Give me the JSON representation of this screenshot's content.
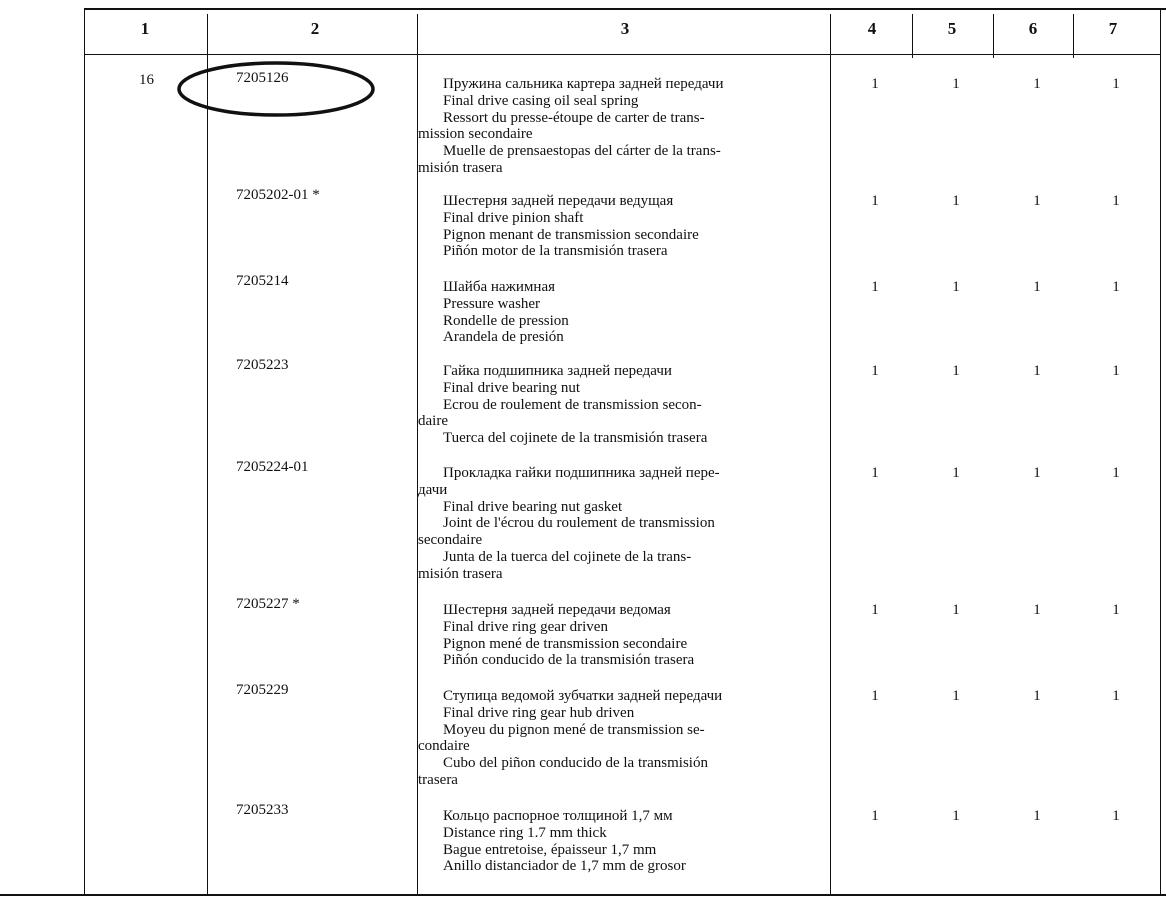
{
  "header": [
    "1",
    "2",
    "3",
    "4",
    "5",
    "6",
    "7"
  ],
  "rows": [
    {
      "col1": "16",
      "part": "7205126",
      "desc": [
        [
          "Пружина сальника картера задней передачи"
        ],
        [
          "Final drive casing oil seal spring"
        ],
        [
          "Ressort du presse-étoupe de carter de trans-",
          "mission secondaire"
        ],
        [
          "Muelle de prensaestopas del cárter de la trans-",
          "misión trasera"
        ]
      ],
      "qty": [
        "1",
        "1",
        "1",
        "1"
      ]
    },
    {
      "part": "7205202-01 *",
      "desc": [
        [
          "Шестерня задней передачи ведущая"
        ],
        [
          "Final drive pinion shaft"
        ],
        [
          "Pignon menant de transmission secondaire"
        ],
        [
          "Piñón motor de la transmisión trasera"
        ]
      ],
      "qty": [
        "1",
        "1",
        "1",
        "1"
      ]
    },
    {
      "part": "7205214",
      "desc": [
        [
          "Шайба нажимная"
        ],
        [
          "Pressure washer"
        ],
        [
          "Rondelle de pression"
        ],
        [
          "Arandela de presión"
        ]
      ],
      "qty": [
        "1",
        "1",
        "1",
        "1"
      ]
    },
    {
      "part": "7205223",
      "desc": [
        [
          "Гайка подшипника задней передачи"
        ],
        [
          "Final drive bearing nut"
        ],
        [
          "Ecrou de roulement de transmission secon-",
          "daire"
        ],
        [
          "Tuerca del cojinete de la transmisión trasera"
        ]
      ],
      "qty": [
        "1",
        "1",
        "1",
        "1"
      ]
    },
    {
      "part": "7205224-01",
      "desc": [
        [
          "Прокладка гайки подшипника задней пере-",
          "дачи"
        ],
        [
          "Final drive bearing nut gasket"
        ],
        [
          "Joint de l'écrou du roulement de transmission",
          "secondaire"
        ],
        [
          "Junta de la tuerca del cojinete de la trans-",
          "misión trasera"
        ]
      ],
      "qty": [
        "1",
        "1",
        "1",
        "1"
      ]
    },
    {
      "part": "7205227 *",
      "desc": [
        [
          "Шестерня задней передачи ведомая"
        ],
        [
          "Final drive ring gear driven"
        ],
        [
          "Pignon mené de transmission secondaire"
        ],
        [
          "Piñón conducido de la transmisión trasera"
        ]
      ],
      "qty": [
        "1",
        "1",
        "1",
        "1"
      ]
    },
    {
      "part": "7205229",
      "desc": [
        [
          "Ступица ведомой зубчатки задней передачи"
        ],
        [
          "Final drive ring gear hub driven"
        ],
        [
          "Moyeu du pignon mené de transmission se-",
          "condaire"
        ],
        [
          "Cubo del piñon conducido de la transmisión",
          "trasera"
        ]
      ],
      "qty": [
        "1",
        "1",
        "1",
        "1"
      ]
    },
    {
      "part": "7205233",
      "desc": [
        [
          "Кольцо распорное толщиной 1,7 мм"
        ],
        [
          "Distance ring 1.7 mm thick"
        ],
        [
          "Bague entretoise, épaisseur 1,7 mm"
        ],
        [
          "Anillo distanciador de 1,7 mm de grosor"
        ]
      ],
      "qty": [
        "1",
        "1",
        "1",
        "1"
      ]
    }
  ]
}
